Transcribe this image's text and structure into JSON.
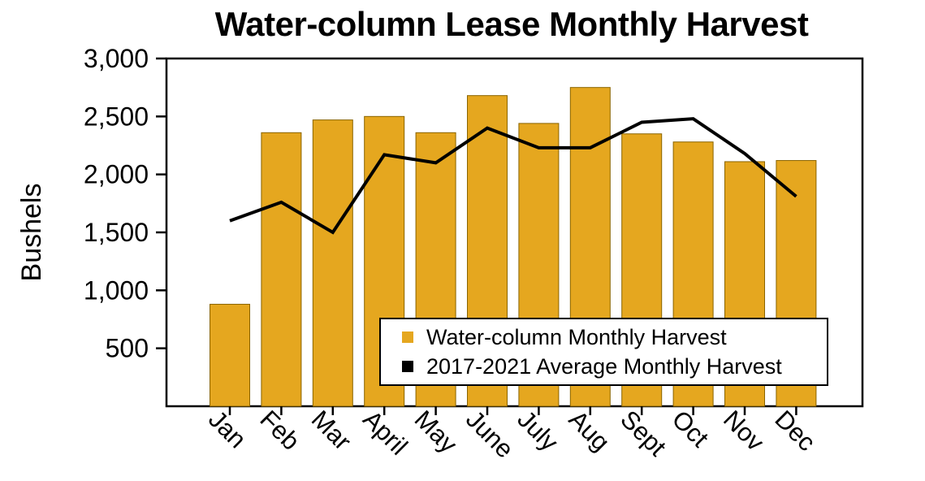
{
  "title": "Water-column Lease Monthly Harvest",
  "ylabel": "Bushels",
  "colors": {
    "bar": "#E5A71F",
    "bar_edge": "#8a6400",
    "line": "#000000",
    "axis": "#000000",
    "background": "#FFFFFF"
  },
  "legend": {
    "items": [
      {
        "label": "Water-column Monthly Harvest",
        "color": "#E5A71F"
      },
      {
        "label": "2017-2021 Average Monthly Harvest",
        "color": "#000000"
      }
    ]
  },
  "chart_data": {
    "type": "bar",
    "title": "Water-column Lease Monthly Harvest",
    "xlabel": "",
    "ylabel": "Bushels",
    "ylim": [
      0,
      3000
    ],
    "yticks": [
      500,
      1000,
      1500,
      2000,
      2500,
      3000
    ],
    "grid": false,
    "legend_position": "inside lower right",
    "categories": [
      "Jan",
      "Feb",
      "Mar",
      "April",
      "May",
      "June",
      "July",
      "Aug",
      "Sept",
      "Oct",
      "Nov",
      "Dec"
    ],
    "series": [
      {
        "name": "Water-column Monthly Harvest",
        "type": "bar",
        "color": "#E5A71F",
        "values": [
          880,
          2360,
          2470,
          2500,
          2360,
          2680,
          2440,
          2750,
          2350,
          2280,
          2110,
          2120
        ]
      },
      {
        "name": "2017-2021 Average Monthly Harvest",
        "type": "line",
        "color": "#000000",
        "values": [
          1600,
          1760,
          1500,
          2170,
          2100,
          2400,
          2230,
          2230,
          2450,
          2480,
          2180,
          1810
        ]
      }
    ]
  }
}
